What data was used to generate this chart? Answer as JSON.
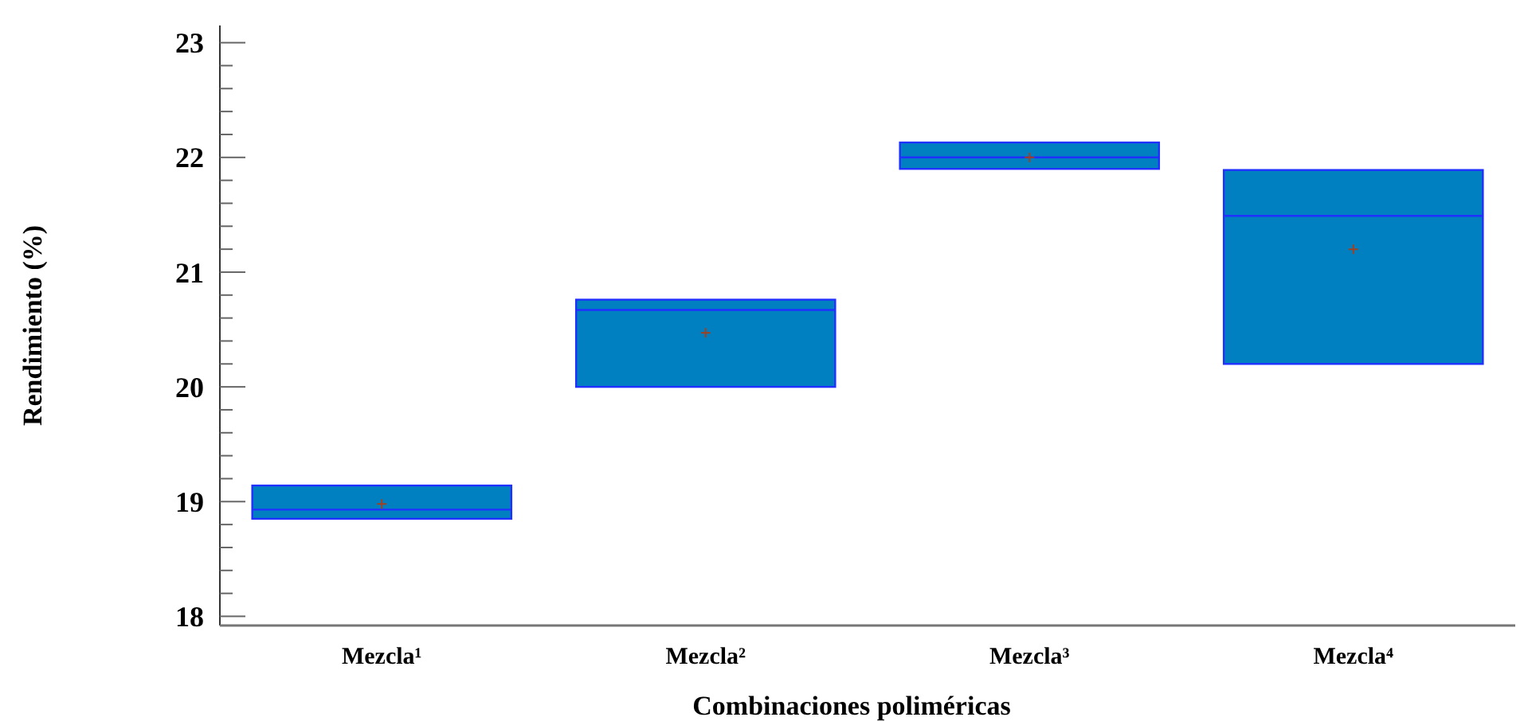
{
  "chart_data": {
    "type": "box",
    "xlabel": "Combinaciones poliméricas",
    "ylabel": "Rendimiento (%)",
    "categories": [
      "Mezcla¹",
      "Mezcla²",
      "Mezcla³",
      "Mezcla⁴"
    ],
    "series": [
      {
        "color": "#0080c0",
        "boxes": [
          {
            "low": 18.85,
            "q1": 18.85,
            "median": 18.93,
            "q3": 19.14,
            "high": 19.14,
            "mean": 18.98
          },
          {
            "low": 20.0,
            "q1": 20.0,
            "median": 20.67,
            "q3": 20.76,
            "high": 20.76,
            "mean": 20.47
          },
          {
            "low": 21.9,
            "q1": 21.9,
            "median": 22.0,
            "q3": 22.13,
            "high": 22.13,
            "mean": 22.0
          },
          {
            "low": 20.2,
            "q1": 20.2,
            "median": 21.49,
            "q3": 21.89,
            "high": 21.89,
            "mean": 21.2
          }
        ]
      }
    ],
    "ylim": [
      17.92,
      23.15
    ],
    "yticks": [
      18,
      {
        "value": 18.2,
        "label": null
      },
      {
        "value": 18.4,
        "label": null
      },
      {
        "value": 18.6,
        "label": null
      },
      {
        "value": 18.8,
        "label": null
      },
      19,
      {
        "value": 19.2,
        "label": null
      },
      {
        "value": 19.4,
        "label": null
      },
      {
        "value": 19.6,
        "label": null
      },
      {
        "value": 19.8,
        "label": null
      },
      20,
      {
        "value": 20.2,
        "label": null
      },
      {
        "value": 20.4,
        "label": null
      },
      {
        "value": 20.6,
        "label": null
      },
      {
        "value": 20.8,
        "label": null
      },
      21,
      {
        "value": 21.2,
        "label": null
      },
      {
        "value": 21.4,
        "label": null
      },
      {
        "value": 21.6,
        "label": null
      },
      {
        "value": 21.8,
        "label": null
      },
      22,
      {
        "value": 22.2,
        "label": null
      },
      {
        "value": 22.4,
        "label": null
      },
      {
        "value": 22.6,
        "label": null
      },
      {
        "value": 22.8,
        "label": null
      },
      23
    ],
    "grid": false
  }
}
